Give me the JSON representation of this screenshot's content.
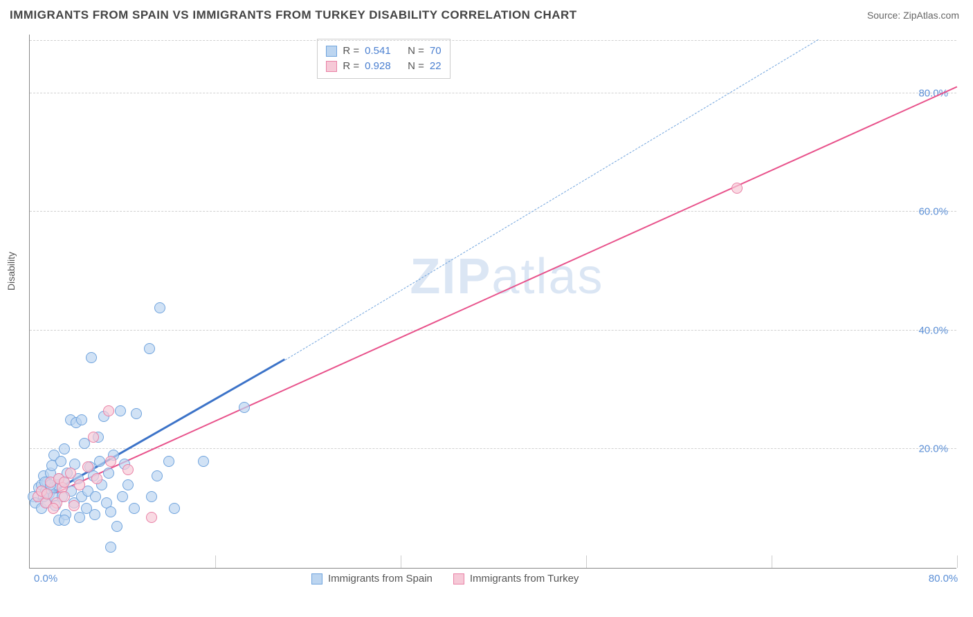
{
  "header": {
    "title": "IMMIGRANTS FROM SPAIN VS IMMIGRANTS FROM TURKEY DISABILITY CORRELATION CHART",
    "source_prefix": "Source: ",
    "source_name": "ZipAtlas.com"
  },
  "axes": {
    "y_label": "Disability",
    "xlim": [
      0,
      80
    ],
    "ylim": [
      0,
      90
    ],
    "y_ticks": [
      20,
      40,
      60,
      80
    ],
    "y_tick_labels": [
      "20.0%",
      "40.0%",
      "60.0%",
      "80.0%"
    ],
    "x_ticks": [
      0,
      16,
      32,
      48,
      64,
      80
    ],
    "x_label_min": "0.0%",
    "x_label_max": "80.0%",
    "axis_color": "#888888",
    "grid_color": "#d0d0d0",
    "tick_label_color": "#5b8fd6"
  },
  "watermark": {
    "text_bold": "ZIP",
    "text_light": "atlas",
    "color": "#dbe6f4"
  },
  "legend_top": {
    "rows": [
      {
        "swatch_fill": "#bcd5f0",
        "swatch_border": "#6fa3dd",
        "r_label": "R =",
        "r_value": "0.541",
        "n_label": "N =",
        "n_value": "70"
      },
      {
        "swatch_fill": "#f6c9d7",
        "swatch_border": "#e981a6",
        "r_label": "R =",
        "r_value": "0.928",
        "n_label": "N =",
        "n_value": "22"
      }
    ],
    "label_color": "#555555",
    "value_color": "#4a7fd0"
  },
  "legend_bottom": {
    "items": [
      {
        "swatch_fill": "#bcd5f0",
        "swatch_border": "#6fa3dd",
        "label": "Immigrants from Spain"
      },
      {
        "swatch_fill": "#f6c9d7",
        "swatch_border": "#e981a6",
        "label": "Immigrants from Turkey"
      }
    ]
  },
  "series": {
    "spain": {
      "marker_fill": "#bcd5f0b0",
      "marker_stroke": "#6fa3dd",
      "marker_radius": 8,
      "line_color": "#3c73c8",
      "line_width": 2.5,
      "dash_color": "#6fa3dd",
      "trend": {
        "x1": 0.5,
        "y1": 11,
        "x2": 22,
        "y2": 35
      },
      "trend_dash": {
        "x1": 22,
        "y1": 35,
        "x2": 68,
        "y2": 89
      },
      "points": [
        [
          0.3,
          12
        ],
        [
          0.5,
          11
        ],
        [
          0.8,
          13.5
        ],
        [
          1,
          14
        ],
        [
          1,
          10
        ],
        [
          1.2,
          15.5
        ],
        [
          1.4,
          13
        ],
        [
          1.5,
          14.5
        ],
        [
          1.5,
          11
        ],
        [
          1.7,
          12.5
        ],
        [
          1.8,
          16
        ],
        [
          1.9,
          17.2
        ],
        [
          2,
          12
        ],
        [
          2,
          13.5
        ],
        [
          2.1,
          19
        ],
        [
          2.2,
          10.5
        ],
        [
          2.4,
          14
        ],
        [
          2.5,
          15
        ],
        [
          1.2,
          12
        ],
        [
          2.5,
          8
        ],
        [
          2.7,
          18
        ],
        [
          2.8,
          12
        ],
        [
          3,
          14.5
        ],
        [
          3,
          20
        ],
        [
          3.1,
          9
        ],
        [
          3.2,
          16
        ],
        [
          1.3,
          14.5
        ],
        [
          3.5,
          25
        ],
        [
          3.6,
          13
        ],
        [
          3.8,
          11
        ],
        [
          3.9,
          17.5
        ],
        [
          4,
          24.5
        ],
        [
          4.2,
          15
        ],
        [
          4.3,
          8.5
        ],
        [
          4.5,
          12
        ],
        [
          4.5,
          25
        ],
        [
          4.7,
          21
        ],
        [
          4.9,
          10
        ],
        [
          5,
          13
        ],
        [
          1.8,
          14
        ],
        [
          5.2,
          17
        ],
        [
          5.3,
          35.5
        ],
        [
          5.5,
          15.5
        ],
        [
          5.7,
          12
        ],
        [
          5.9,
          22
        ],
        [
          6,
          18
        ],
        [
          6.2,
          14
        ],
        [
          6.4,
          25.5
        ],
        [
          6.6,
          11
        ],
        [
          6.8,
          16
        ],
        [
          7,
          9.5
        ],
        [
          7.2,
          19
        ],
        [
          7.5,
          7
        ],
        [
          7.8,
          26.5
        ],
        [
          8,
          12
        ],
        [
          8.2,
          17.5
        ],
        [
          8.5,
          14
        ],
        [
          9,
          10
        ],
        [
          9.2,
          26
        ],
        [
          3,
          8
        ],
        [
          10.3,
          37
        ],
        [
          10.5,
          12
        ],
        [
          11,
          15.5
        ],
        [
          11.2,
          43.8
        ],
        [
          12,
          18
        ],
        [
          12.5,
          10
        ],
        [
          7,
          3.5
        ],
        [
          15,
          18
        ],
        [
          5.6,
          9
        ],
        [
          18.5,
          27
        ]
      ]
    },
    "turkey": {
      "marker_fill": "#f6c9d7b0",
      "marker_stroke": "#e981a6",
      "marker_radius": 8,
      "line_color": "#e8528b",
      "line_width": 2,
      "trend": {
        "x1": 0.5,
        "y1": 11,
        "x2": 80,
        "y2": 81
      },
      "points": [
        [
          0.7,
          12
        ],
        [
          1,
          13
        ],
        [
          1.4,
          11
        ],
        [
          1.8,
          14.5
        ],
        [
          1.5,
          12.5
        ],
        [
          2.3,
          11
        ],
        [
          2.5,
          15
        ],
        [
          2.8,
          13.5
        ],
        [
          3,
          12
        ],
        [
          3.5,
          16
        ],
        [
          3.8,
          10.5
        ],
        [
          4.3,
          14
        ],
        [
          3,
          14.5
        ],
        [
          5,
          17
        ],
        [
          5.5,
          22
        ],
        [
          5.8,
          15
        ],
        [
          6.8,
          26.5
        ],
        [
          7,
          18
        ],
        [
          8.5,
          16.5
        ],
        [
          10.5,
          8.5
        ],
        [
          2,
          10
        ],
        [
          61,
          64
        ]
      ]
    }
  },
  "background_color": "#ffffff"
}
